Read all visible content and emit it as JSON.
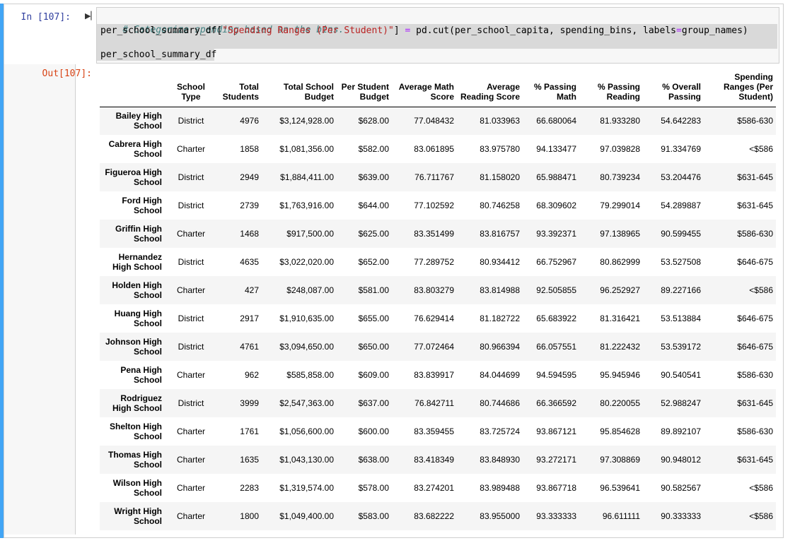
{
  "input_prompt": "In [107]:",
  "output_prompt": "Out[107]:",
  "code": {
    "comment": "# Categorize spending based on the bins.",
    "line2_prefix": "per_school_summary_df[",
    "line2_string": "\"Spending Ranges (Per Student)\"",
    "line2_bracket": "] ",
    "line2_eq": "=",
    "line2_call": " pd.cut(per_school_capita, spending_bins, labels",
    "line2_eq2": "=",
    "line2_suffix": "group_names)",
    "line4": "per_school_summary_df"
  },
  "table": {
    "columns": [
      "School Type",
      "Total Students",
      "Total School Budget",
      "Per Student Budget",
      "Average Math Score",
      "Average Reading Score",
      "% Passing Math",
      "% Passing Reading",
      "% Overall Passing",
      "Spending Ranges (Per Student)"
    ],
    "rows": [
      {
        "index": "Bailey High School",
        "cells": [
          "District",
          "4976",
          "$3,124,928.00",
          "$628.00",
          "77.048432",
          "81.033963",
          "66.680064",
          "81.933280",
          "54.642283",
          "$586-630"
        ]
      },
      {
        "index": "Cabrera High School",
        "cells": [
          "Charter",
          "1858",
          "$1,081,356.00",
          "$582.00",
          "83.061895",
          "83.975780",
          "94.133477",
          "97.039828",
          "91.334769",
          "<$586"
        ]
      },
      {
        "index": "Figueroa High School",
        "cells": [
          "District",
          "2949",
          "$1,884,411.00",
          "$639.00",
          "76.711767",
          "81.158020",
          "65.988471",
          "80.739234",
          "53.204476",
          "$631-645"
        ]
      },
      {
        "index": "Ford High School",
        "cells": [
          "District",
          "2739",
          "$1,763,916.00",
          "$644.00",
          "77.102592",
          "80.746258",
          "68.309602",
          "79.299014",
          "54.289887",
          "$631-645"
        ]
      },
      {
        "index": "Griffin High School",
        "cells": [
          "Charter",
          "1468",
          "$917,500.00",
          "$625.00",
          "83.351499",
          "83.816757",
          "93.392371",
          "97.138965",
          "90.599455",
          "$586-630"
        ]
      },
      {
        "index": "Hernandez High School",
        "cells": [
          "District",
          "4635",
          "$3,022,020.00",
          "$652.00",
          "77.289752",
          "80.934412",
          "66.752967",
          "80.862999",
          "53.527508",
          "$646-675"
        ]
      },
      {
        "index": "Holden High School",
        "cells": [
          "Charter",
          "427",
          "$248,087.00",
          "$581.00",
          "83.803279",
          "83.814988",
          "92.505855",
          "96.252927",
          "89.227166",
          "<$586"
        ]
      },
      {
        "index": "Huang High School",
        "cells": [
          "District",
          "2917",
          "$1,910,635.00",
          "$655.00",
          "76.629414",
          "81.182722",
          "65.683922",
          "81.316421",
          "53.513884",
          "$646-675"
        ]
      },
      {
        "index": "Johnson High School",
        "cells": [
          "District",
          "4761",
          "$3,094,650.00",
          "$650.00",
          "77.072464",
          "80.966394",
          "66.057551",
          "81.222432",
          "53.539172",
          "$646-675"
        ]
      },
      {
        "index": "Pena High School",
        "cells": [
          "Charter",
          "962",
          "$585,858.00",
          "$609.00",
          "83.839917",
          "84.044699",
          "94.594595",
          "95.945946",
          "90.540541",
          "$586-630"
        ]
      },
      {
        "index": "Rodriguez High School",
        "cells": [
          "District",
          "3999",
          "$2,547,363.00",
          "$637.00",
          "76.842711",
          "80.744686",
          "66.366592",
          "80.220055",
          "52.988247",
          "$631-645"
        ]
      },
      {
        "index": "Shelton High School",
        "cells": [
          "Charter",
          "1761",
          "$1,056,600.00",
          "$600.00",
          "83.359455",
          "83.725724",
          "93.867121",
          "95.854628",
          "89.892107",
          "$586-630"
        ]
      },
      {
        "index": "Thomas High School",
        "cells": [
          "Charter",
          "1635",
          "$1,043,130.00",
          "$638.00",
          "83.418349",
          "83.848930",
          "93.272171",
          "97.308869",
          "90.948012",
          "$631-645"
        ]
      },
      {
        "index": "Wilson High School",
        "cells": [
          "Charter",
          "2283",
          "$1,319,574.00",
          "$578.00",
          "83.274201",
          "83.989488",
          "93.867718",
          "96.539641",
          "90.582567",
          "<$586"
        ]
      },
      {
        "index": "Wright High School",
        "cells": [
          "Charter",
          "1800",
          "$1,049,400.00",
          "$583.00",
          "83.682222",
          "83.955000",
          "93.333333",
          "96.611111",
          "90.333333",
          "<$586"
        ]
      }
    ]
  }
}
